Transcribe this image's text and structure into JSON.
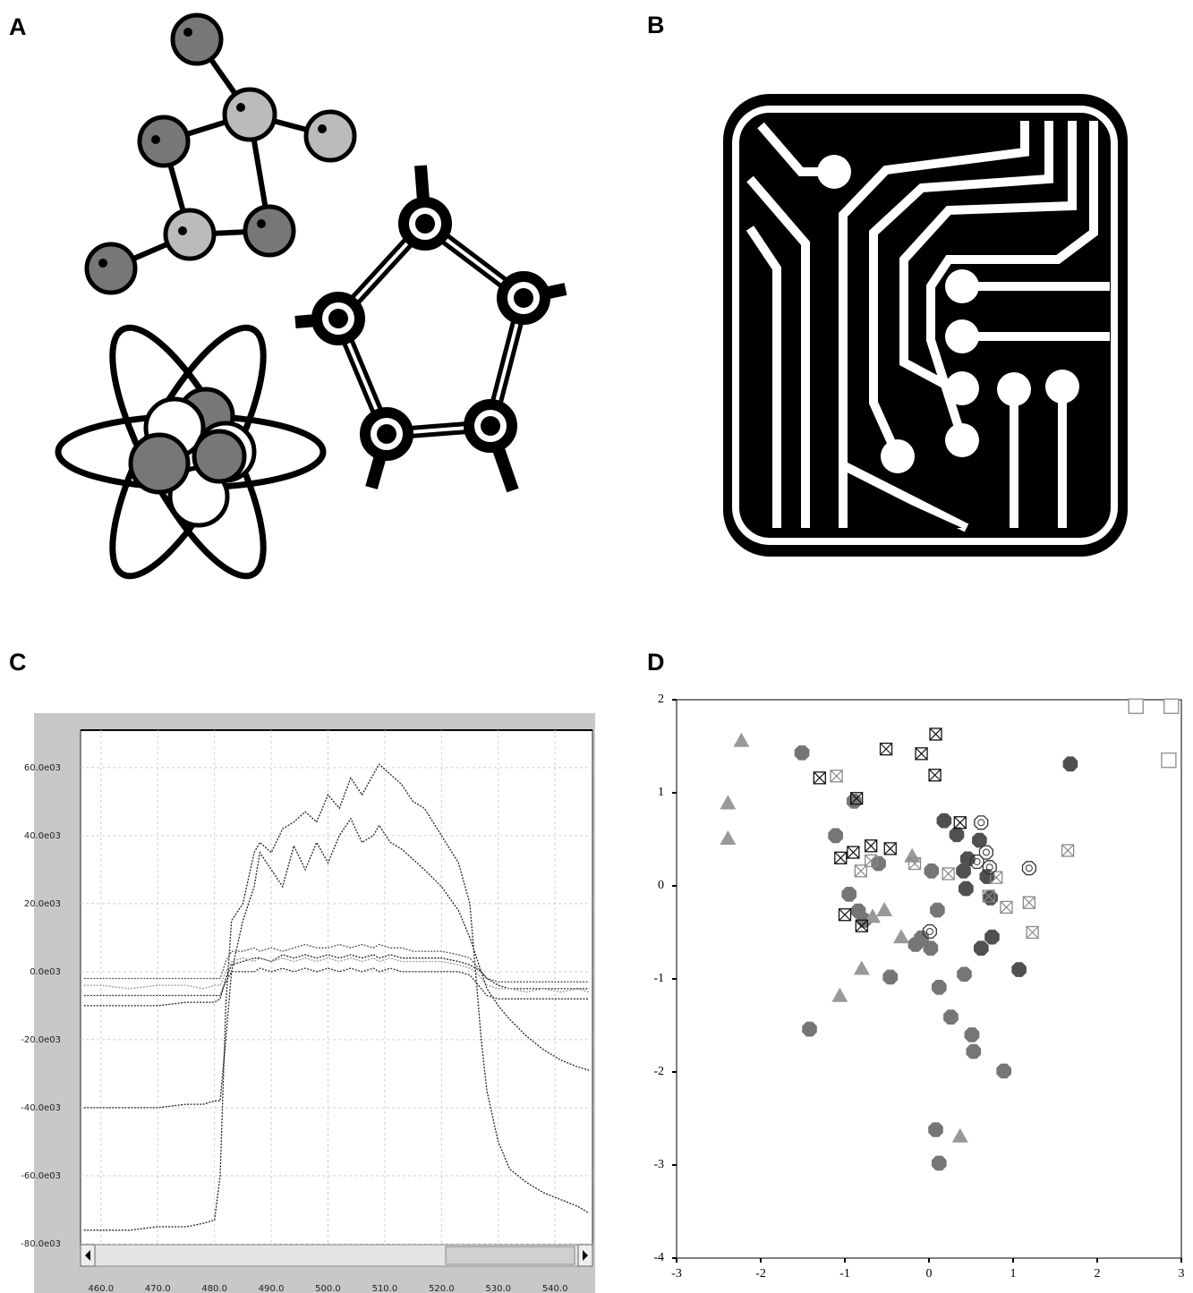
{
  "panel_labels": [
    "A",
    "B",
    "C",
    "D"
  ],
  "chart_data": [
    {
      "type": "line",
      "x": [
        457,
        460,
        465,
        470,
        475,
        478,
        480,
        481,
        482,
        483,
        485,
        487,
        488,
        490,
        492,
        494,
        496,
        498,
        500,
        502,
        504,
        506,
        508,
        509,
        511,
        513,
        515,
        517,
        520,
        523,
        525,
        526,
        527,
        528,
        530,
        532,
        535,
        538,
        541,
        544,
        546
      ],
      "series": [
        {
          "color": "#222222",
          "values": [
            -76000,
            -76000,
            -76000,
            -75000,
            -75000,
            -74000,
            -73000,
            -60000,
            -10000,
            15000,
            20000,
            35000,
            38000,
            35000,
            42000,
            44000,
            47000,
            44000,
            52000,
            48000,
            57000,
            52000,
            58000,
            61000,
            58000,
            55000,
            50000,
            48000,
            40000,
            32000,
            20000,
            0,
            -20000,
            -35000,
            -50000,
            -58000,
            -62000,
            -65000,
            -67000,
            -69000,
            -71000
          ]
        },
        {
          "color": "#222222",
          "values": [
            -40000,
            -40000,
            -40000,
            -40000,
            -39000,
            -39000,
            -38000,
            -38000,
            -20000,
            0,
            15000,
            25000,
            35000,
            30000,
            25000,
            37000,
            30000,
            38000,
            32000,
            40000,
            45000,
            38000,
            40000,
            43000,
            38000,
            36000,
            33000,
            30000,
            25000,
            18000,
            10000,
            5000,
            0,
            -5000,
            -10000,
            -14000,
            -19000,
            -23000,
            -26000,
            -28000,
            -29000
          ]
        },
        {
          "color": "#222222",
          "values": [
            -10000,
            -10000,
            -10000,
            -10000,
            -9000,
            -9000,
            -9000,
            -8000,
            -2000,
            2000,
            3000,
            4000,
            4000,
            3000,
            5000,
            4000,
            5000,
            4000,
            5000,
            4000,
            5000,
            4000,
            5000,
            4000,
            5000,
            4000,
            4000,
            4000,
            4000,
            3000,
            2000,
            1000,
            0,
            -2000,
            -4000,
            -5000,
            -5000,
            -5000,
            -5000,
            -5000,
            -5000
          ]
        },
        {
          "color": "#555555",
          "values": [
            -2000,
            -2000,
            -2000,
            -2000,
            -2000,
            -2000,
            -2000,
            -2000,
            3000,
            6000,
            6000,
            7000,
            6000,
            7000,
            6000,
            7000,
            8000,
            7000,
            7000,
            8000,
            7000,
            8000,
            7000,
            8000,
            7000,
            7000,
            6000,
            6000,
            6000,
            5000,
            4000,
            2000,
            0,
            -2000,
            -3000,
            -3000,
            -3000,
            -3000,
            -3000,
            -3000,
            -3000
          ]
        },
        {
          "color": "#333333",
          "values": [
            -7000,
            -7000,
            -7000,
            -7000,
            -7000,
            -7000,
            -7000,
            -7000,
            -3000,
            0,
            0,
            0,
            1000,
            0,
            1000,
            0,
            1000,
            0,
            1000,
            0,
            1000,
            0,
            1000,
            0,
            1000,
            0,
            0,
            0,
            0,
            0,
            -1000,
            -3000,
            -5000,
            -7000,
            -8000,
            -8000,
            -8000,
            -8000,
            -8000,
            -8000,
            -8000
          ]
        },
        {
          "color": "#999999",
          "values": [
            -4000,
            -4000,
            -5000,
            -4000,
            -4000,
            -5000,
            -4000,
            -4000,
            0,
            3000,
            4000,
            3000,
            4000,
            3000,
            4000,
            3000,
            4000,
            3000,
            4000,
            3000,
            4000,
            3000,
            4000,
            3000,
            4000,
            3000,
            3000,
            3000,
            3000,
            2000,
            1000,
            0,
            -2000,
            -4000,
            -5000,
            -5000,
            -6000,
            -5000,
            -6000,
            -5000,
            -6000
          ]
        }
      ],
      "xlim": [
        456.4,
        546.6
      ],
      "ylim": [
        -80000,
        71000
      ],
      "xticks": [
        {
          "value": 460,
          "label": "460.0"
        },
        {
          "value": 470,
          "label": "470.0"
        },
        {
          "value": 480,
          "label": "480.0"
        },
        {
          "value": 490,
          "label": "490.0"
        },
        {
          "value": 500,
          "label": "500.0"
        },
        {
          "value": 510,
          "label": "510.0"
        },
        {
          "value": 520,
          "label": "520.0"
        },
        {
          "value": 530,
          "label": "530.0"
        },
        {
          "value": 540,
          "label": "540.0"
        }
      ],
      "yticks": [
        {
          "value": 60000,
          "label": "60.0e03"
        },
        {
          "value": 40000,
          "label": "40.0e03"
        },
        {
          "value": 20000,
          "label": "20.0e03"
        },
        {
          "value": 0,
          "label": "0.0e03"
        },
        {
          "value": -20000,
          "label": "-20.0e03"
        },
        {
          "value": -40000,
          "label": "-40.0e03"
        },
        {
          "value": -60000,
          "label": "-60.0e03"
        },
        {
          "value": -80000,
          "label": "-80.0e03"
        }
      ],
      "grid": true
    },
    {
      "type": "scatter",
      "xlim": [
        -3,
        3
      ],
      "ylim": [
        -4,
        2
      ],
      "xticks": [
        -3,
        -2,
        -1,
        0,
        1,
        2,
        3
      ],
      "yticks": [
        -4,
        -3,
        -2,
        -1,
        0,
        1,
        2
      ],
      "series": [
        {
          "marker": "octagon",
          "color": "#505050",
          "x": [
            0.18,
            0.33,
            0.6,
            0.46,
            0.41,
            0.44,
            0.69,
            0.73,
            0.75,
            0.62,
            1.07,
            1.68
          ],
          "values": [
            0.7,
            0.55,
            0.49,
            0.29,
            0.16,
            -0.03,
            0.1,
            -0.13,
            -0.55,
            -0.67,
            -0.9,
            1.31
          ]
        },
        {
          "marker": "octagon",
          "color": "#767676",
          "x": [
            -1.51,
            -0.89,
            -1.11,
            -0.95,
            -0.84,
            -0.77,
            -0.6,
            0.03,
            0.1,
            -0.09,
            -0.16,
            0.02,
            -0.46,
            0.12,
            0.42,
            0.26,
            0.51,
            0.53,
            0.89,
            -1.42,
            0.08,
            0.12
          ],
          "values": [
            1.43,
            0.91,
            0.54,
            -0.09,
            -0.27,
            -0.37,
            0.24,
            0.16,
            -0.26,
            -0.56,
            -0.63,
            -0.67,
            -0.98,
            -1.09,
            -0.95,
            -1.41,
            -1.6,
            -1.78,
            -1.99,
            -1.54,
            -2.62,
            -2.98
          ]
        },
        {
          "marker": "triangle",
          "color": "#999999",
          "x": [
            -2.23,
            -2.39,
            -2.39,
            -0.2,
            -0.53,
            -0.67,
            -0.33,
            -0.8,
            -1.06,
            0.37
          ],
          "values": [
            1.56,
            0.89,
            0.51,
            0.32,
            -0.26,
            -0.33,
            -0.55,
            -0.89,
            -1.18,
            -2.69
          ]
        },
        {
          "marker": "crossed-square",
          "color": "#111111",
          "x": [
            0.08,
            -0.51,
            -0.09,
            0.07,
            -1.3,
            -0.86,
            0.37,
            -1.05,
            -0.9,
            -0.69,
            -0.46,
            -1.0,
            -0.8
          ],
          "values": [
            1.63,
            1.47,
            1.42,
            1.19,
            1.16,
            0.94,
            0.68,
            0.3,
            0.36,
            0.43,
            0.4,
            -0.31,
            -0.43
          ]
        },
        {
          "marker": "crossed-square",
          "color": "#8a8a8a",
          "x": [
            -1.1,
            -0.81,
            -0.69,
            -0.17,
            0.23,
            0.8,
            0.92,
            1.19,
            1.23,
            1.65,
            0.71
          ],
          "values": [
            1.18,
            0.16,
            0.27,
            0.24,
            0.13,
            0.09,
            -0.23,
            -0.18,
            -0.5,
            0.38,
            -0.11
          ]
        },
        {
          "marker": "circled-dot",
          "color": "#333333",
          "x": [
            0.62,
            0.68,
            0.72,
            1.19,
            0.01,
            0.57
          ],
          "values": [
            0.68,
            0.36,
            0.2,
            0.19,
            -0.49,
            0.26
          ]
        },
        {
          "marker": "open-square",
          "color": "#999999",
          "x": [
            2.46,
            2.88,
            2.85
          ],
          "values": [
            1.93,
            1.93,
            1.35
          ]
        }
      ]
    }
  ]
}
